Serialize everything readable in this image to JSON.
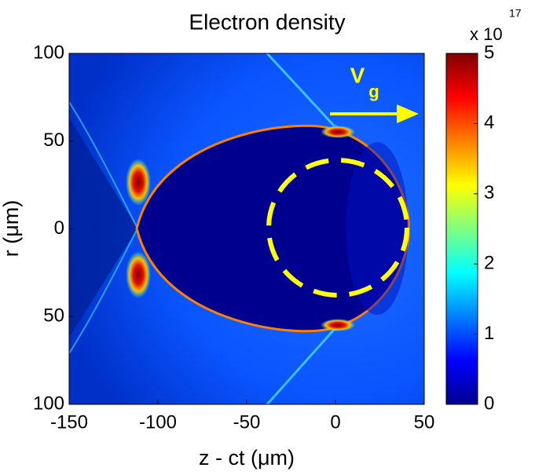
{
  "chart_data": {
    "type": "image",
    "title": "Electron density",
    "xlabel": "z - ct (μm)",
    "ylabel": "r (μm)",
    "xlim": [
      -150,
      50
    ],
    "xticks": [
      -150,
      -100,
      -50,
      0,
      50
    ],
    "ylim": [
      -100,
      100
    ],
    "yticks": [
      {
        "value": -100,
        "label": "100"
      },
      {
        "value": -50,
        "label": "50"
      },
      0,
      50,
      100
    ],
    "colormap": "jet",
    "clim": [
      0,
      5
    ],
    "cticks": [
      0,
      1,
      2,
      3,
      4,
      5
    ],
    "colorbar_multiplier": "x 10",
    "colorbar_exponent": "17",
    "annotation": "V",
    "annotation_subscript": "g"
  }
}
